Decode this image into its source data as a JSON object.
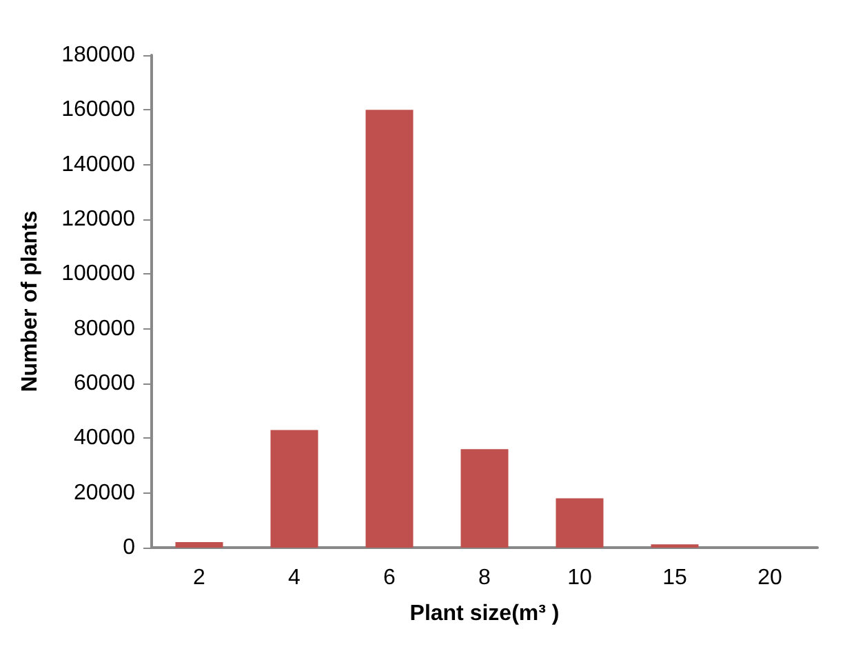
{
  "chart_data": {
    "type": "bar",
    "xlabel": "Plant size(m³ )",
    "ylabel": "Number of plants",
    "categories": [
      "2",
      "4",
      "6",
      "8",
      "10",
      "15",
      "20"
    ],
    "values": [
      2000,
      43000,
      160000,
      36000,
      18000,
      1200,
      0
    ],
    "color": "#c0504d",
    "ylim": [
      0,
      180000
    ],
    "yticks": [
      0,
      20000,
      40000,
      60000,
      80000,
      100000,
      120000,
      140000,
      160000,
      180000
    ],
    "grid": false
  }
}
